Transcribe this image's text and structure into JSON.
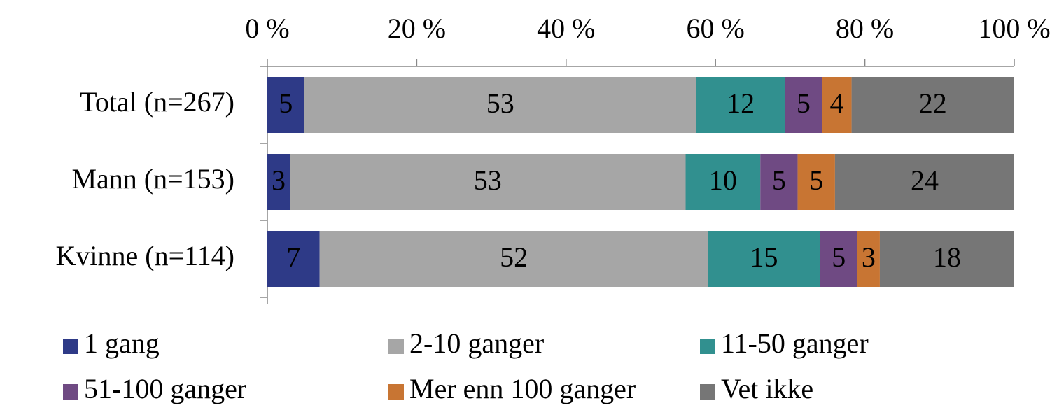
{
  "chart_data": {
    "type": "stacked_bar_100",
    "categories": [
      "Total (n=267)",
      "Mann (n=153)",
      "Kvinne (n=114)"
    ],
    "series": [
      {
        "name": "1 gang",
        "color": "#2e3a87",
        "values": [
          5,
          3,
          7
        ]
      },
      {
        "name": "2-10 ganger",
        "color": "#a6a6a6",
        "values": [
          53,
          53,
          52
        ]
      },
      {
        "name": "11-50 ganger",
        "color": "#31908f",
        "values": [
          12,
          10,
          15
        ]
      },
      {
        "name": "51-100 ganger",
        "color": "#6f4a83",
        "values": [
          5,
          5,
          5
        ]
      },
      {
        "name": "Mer enn 100 ganger",
        "color": "#c87533",
        "values": [
          4,
          5,
          3
        ]
      },
      {
        "name": "Vet ikke",
        "color": "#767676",
        "values": [
          22,
          24,
          18
        ]
      }
    ],
    "xlim": [
      0,
      100
    ],
    "xticks": [
      {
        "value": 0,
        "label": "0 %"
      },
      {
        "value": 20,
        "label": "20 %"
      },
      {
        "value": 40,
        "label": "40 %"
      },
      {
        "value": 60,
        "label": "60 %"
      },
      {
        "value": 80,
        "label": "80 %"
      },
      {
        "value": 100,
        "label": "100 %"
      }
    ],
    "legend": "bottom"
  }
}
